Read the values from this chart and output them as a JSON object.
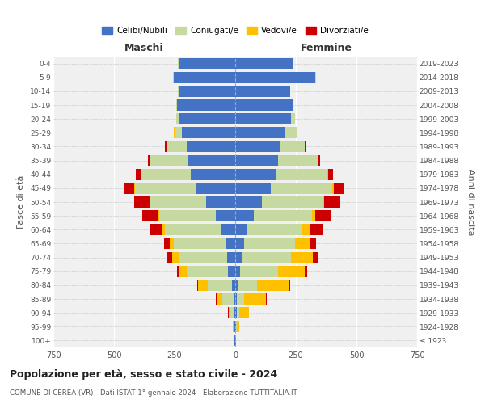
{
  "age_groups": [
    "100+",
    "95-99",
    "90-94",
    "85-89",
    "80-84",
    "75-79",
    "70-74",
    "65-69",
    "60-64",
    "55-59",
    "50-54",
    "45-49",
    "40-44",
    "35-39",
    "30-34",
    "25-29",
    "20-24",
    "15-19",
    "10-14",
    "5-9",
    "0-4"
  ],
  "birth_years": [
    "≤ 1923",
    "1924-1928",
    "1929-1933",
    "1934-1938",
    "1939-1943",
    "1944-1948",
    "1949-1953",
    "1954-1958",
    "1959-1963",
    "1964-1968",
    "1969-1973",
    "1974-1978",
    "1979-1983",
    "1984-1988",
    "1989-1993",
    "1994-1998",
    "1999-2003",
    "2004-2008",
    "2009-2013",
    "2014-2018",
    "2019-2023"
  ],
  "male": {
    "celibi": [
      2,
      3,
      5,
      8,
      15,
      30,
      35,
      40,
      60,
      80,
      120,
      160,
      185,
      195,
      200,
      220,
      235,
      240,
      235,
      255,
      235
    ],
    "coniugati": [
      1,
      4,
      15,
      45,
      100,
      170,
      200,
      215,
      230,
      235,
      230,
      255,
      205,
      155,
      85,
      30,
      10,
      5,
      3,
      2,
      1
    ],
    "vedovi": [
      0,
      2,
      8,
      25,
      40,
      30,
      25,
      15,
      10,
      5,
      3,
      2,
      1,
      1,
      0,
      2,
      0,
      0,
      0,
      0,
      0
    ],
    "divorziati": [
      0,
      0,
      1,
      2,
      3,
      10,
      20,
      25,
      55,
      65,
      65,
      40,
      20,
      8,
      5,
      2,
      0,
      0,
      0,
      0,
      0
    ]
  },
  "female": {
    "nubili": [
      2,
      3,
      5,
      8,
      10,
      20,
      30,
      38,
      50,
      75,
      110,
      145,
      170,
      175,
      185,
      205,
      230,
      235,
      225,
      330,
      240
    ],
    "coniugate": [
      0,
      2,
      10,
      30,
      80,
      155,
      200,
      210,
      225,
      240,
      250,
      255,
      210,
      165,
      100,
      50,
      15,
      5,
      2,
      2,
      1
    ],
    "vedove": [
      2,
      10,
      40,
      90,
      130,
      110,
      90,
      60,
      30,
      15,
      8,
      5,
      2,
      1,
      0,
      1,
      0,
      0,
      0,
      0,
      0
    ],
    "divorziate": [
      0,
      0,
      1,
      2,
      5,
      10,
      20,
      25,
      55,
      65,
      65,
      45,
      20,
      10,
      5,
      2,
      0,
      0,
      0,
      0,
      0
    ]
  },
  "colors": {
    "celibi": "#4472c4",
    "coniugati": "#c5d9a0",
    "vedovi": "#ffc000",
    "divorziati": "#cc0000"
  },
  "title": "Popolazione per età, sesso e stato civile - 2024",
  "subtitle": "COMUNE DI CEREA (VR) - Dati ISTAT 1° gennaio 2024 - Elaborazione TUTTITALIA.IT",
  "xlabel_left": "Maschi",
  "xlabel_right": "Femmine",
  "ylabel_left": "Fasce di età",
  "ylabel_right": "Anni di nascita",
  "xlim": 750,
  "legend_labels": [
    "Celibi/Nubili",
    "Coniugati/e",
    "Vedovi/e",
    "Divorziati/e"
  ],
  "bg_color": "#ffffff",
  "ax_bg_color": "#f0f0f0"
}
